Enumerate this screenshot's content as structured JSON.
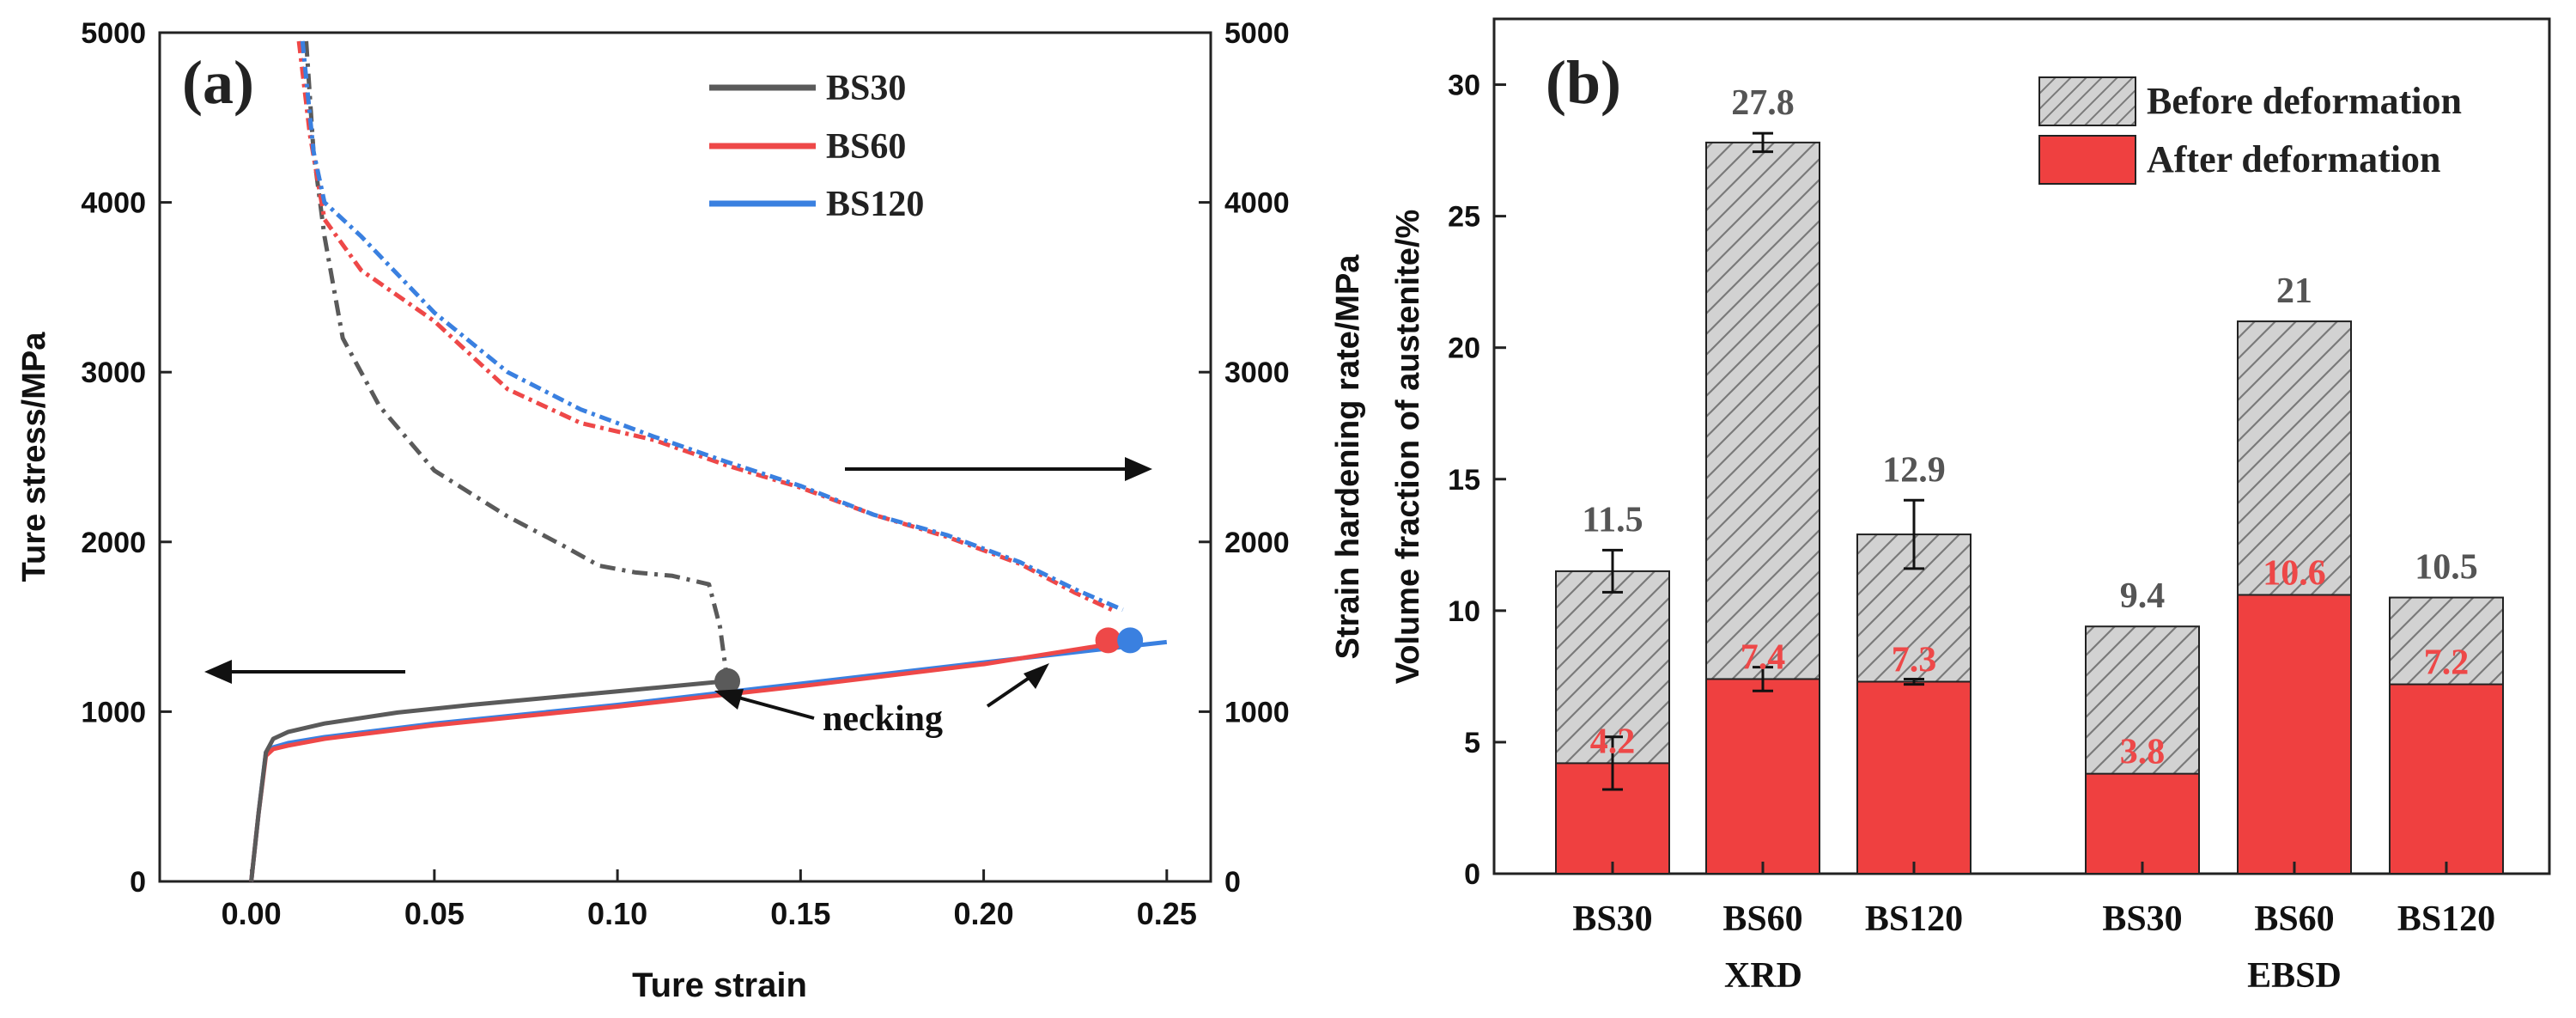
{
  "chart_data": [
    {
      "type": "line",
      "panel_label": "(a)",
      "xlabel": "Ture strain",
      "ylabel": "Ture stress/MPa",
      "y2label": "Strain hardening rate/MPa",
      "xlim": [
        -0.025,
        0.262
      ],
      "ylim": [
        0,
        5000
      ],
      "y2lim": [
        0,
        5000
      ],
      "xticks": [
        "0.00",
        "0.05",
        "0.10",
        "0.15",
        "0.20",
        "0.25"
      ],
      "yticks": [
        "0",
        "1000",
        "2000",
        "3000",
        "4000",
        "5000"
      ],
      "y2ticks": [
        "0",
        "1000",
        "2000",
        "3000",
        "4000",
        "5000"
      ],
      "annotation": "necking",
      "legend": [
        "BS30",
        "BS60",
        "BS120"
      ],
      "colors": {
        "BS30": "#5a5a5a",
        "BS60": "#ee4848",
        "BS120": "#3a80e0"
      },
      "series": [
        {
          "name": "BS30",
          "stress_strain": [
            [
              0.0,
              0
            ],
            [
              0.002,
              400
            ],
            [
              0.004,
              760
            ],
            [
              0.006,
              840
            ],
            [
              0.01,
              880
            ],
            [
              0.02,
              930
            ],
            [
              0.04,
              995
            ],
            [
              0.06,
              1040
            ],
            [
              0.08,
              1080
            ],
            [
              0.1,
              1120
            ],
            [
              0.13,
              1180
            ]
          ],
          "hardening_rate": [
            [
              0.015,
              4950
            ],
            [
              0.017,
              4300
            ],
            [
              0.02,
              3800
            ],
            [
              0.025,
              3200
            ],
            [
              0.035,
              2800
            ],
            [
              0.05,
              2420
            ],
            [
              0.07,
              2150
            ],
            [
              0.085,
              1980
            ],
            [
              0.095,
              1860
            ],
            [
              0.105,
              1820
            ],
            [
              0.115,
              1800
            ],
            [
              0.125,
              1750
            ],
            [
              0.128,
              1500
            ],
            [
              0.13,
              1180
            ]
          ],
          "necking_point": [
            0.13,
            1180
          ]
        },
        {
          "name": "BS60",
          "stress_strain": [
            [
              0.0,
              0
            ],
            [
              0.002,
              400
            ],
            [
              0.004,
              740
            ],
            [
              0.006,
              780
            ],
            [
              0.01,
              800
            ],
            [
              0.02,
              840
            ],
            [
              0.05,
              920
            ],
            [
              0.1,
              1030
            ],
            [
              0.15,
              1150
            ],
            [
              0.2,
              1280
            ],
            [
              0.235,
              1400
            ]
          ],
          "hardening_rate": [
            [
              0.013,
              4950
            ],
            [
              0.016,
              4400
            ],
            [
              0.02,
              3900
            ],
            [
              0.03,
              3600
            ],
            [
              0.05,
              3300
            ],
            [
              0.07,
              2900
            ],
            [
              0.09,
              2700
            ],
            [
              0.11,
              2600
            ],
            [
              0.13,
              2450
            ],
            [
              0.15,
              2320
            ],
            [
              0.17,
              2160
            ],
            [
              0.19,
              2030
            ],
            [
              0.21,
              1870
            ],
            [
              0.225,
              1700
            ],
            [
              0.235,
              1600
            ]
          ],
          "necking_point": [
            0.234,
            1420
          ]
        },
        {
          "name": "BS120",
          "stress_strain": [
            [
              0.0,
              0
            ],
            [
              0.002,
              400
            ],
            [
              0.004,
              760
            ],
            [
              0.006,
              790
            ],
            [
              0.01,
              815
            ],
            [
              0.02,
              850
            ],
            [
              0.05,
              930
            ],
            [
              0.1,
              1040
            ],
            [
              0.15,
              1165
            ],
            [
              0.2,
              1290
            ],
            [
              0.25,
              1410
            ]
          ],
          "hardening_rate": [
            [
              0.014,
              4950
            ],
            [
              0.017,
              4300
            ],
            [
              0.02,
              4000
            ],
            [
              0.03,
              3800
            ],
            [
              0.05,
              3350
            ],
            [
              0.07,
              3000
            ],
            [
              0.09,
              2780
            ],
            [
              0.11,
              2620
            ],
            [
              0.13,
              2470
            ],
            [
              0.15,
              2330
            ],
            [
              0.17,
              2160
            ],
            [
              0.19,
              2040
            ],
            [
              0.21,
              1880
            ],
            [
              0.225,
              1720
            ],
            [
              0.238,
              1600
            ]
          ],
          "necking_point": [
            0.24,
            1420
          ]
        }
      ]
    },
    {
      "type": "bar",
      "panel_label": "(b)",
      "ylabel": "Volume fraction of austenite/%",
      "ylim": [
        0,
        32.5
      ],
      "yticks": [
        "0",
        "5",
        "10",
        "15",
        "20",
        "25",
        "30"
      ],
      "groups": [
        "XRD",
        "EBSD"
      ],
      "categories": [
        "BS30",
        "BS60",
        "BS120",
        "BS30",
        "BS60",
        "BS120"
      ],
      "legend": [
        "Before deformation",
        "After deformation"
      ],
      "colors": {
        "before_fill": "#d2d2d2",
        "hatch": "#7a7a7a",
        "after_fill": "#ef4040",
        "after_label": "#ee4848",
        "before_label": "#555555"
      },
      "series": [
        {
          "name": "Before deformation",
          "values": [
            11.5,
            27.8,
            12.9,
            9.4,
            21,
            10.5
          ],
          "labels": [
            "11.5",
            "27.8",
            "12.9",
            "9.4",
            "21",
            "10.5"
          ],
          "errors": [
            0.8,
            0.35,
            1.3,
            null,
            null,
            null
          ]
        },
        {
          "name": "After deformation",
          "values": [
            4.2,
            7.4,
            7.3,
            3.8,
            10.6,
            7.2
          ],
          "labels": [
            "4.2",
            "7.4",
            "7.3",
            "3.8",
            "10.6",
            "7.2"
          ],
          "errors": [
            1.0,
            0.45,
            0.1,
            null,
            null,
            null
          ]
        }
      ]
    }
  ]
}
